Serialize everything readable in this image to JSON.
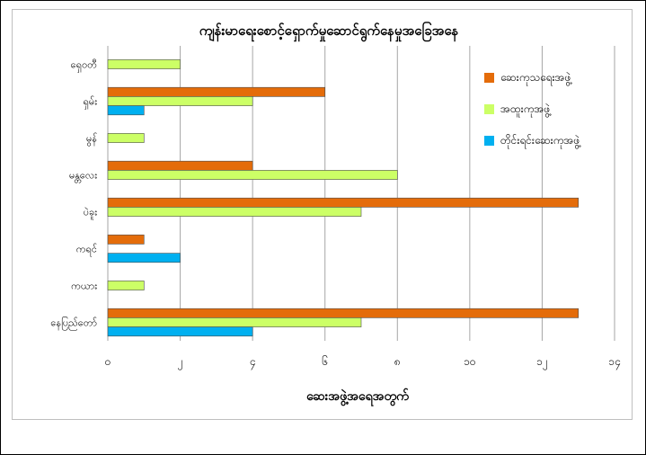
{
  "chart_data": {
    "type": "bar",
    "orientation": "horizontal",
    "title": "ကျန်းမာရေးစောင့်ရှောက်မှုဆောင်ရွက်နေမှုအခြေအနေ",
    "xlabel": "ဆေးအဖွဲ့အရေအတွက်",
    "ylabel": "",
    "xlim": [
      0,
      14
    ],
    "x_ticks": [
      0,
      2,
      4,
      6,
      8,
      10,
      12,
      14
    ],
    "x_tick_labels": [
      "၀",
      "၂",
      "၄",
      "၆",
      "၈",
      "၁၀",
      "၁၂",
      "၁၄"
    ],
    "grid": true,
    "legend_position": "top-right",
    "categories": [
      "ရှေ၀တီ",
      "ရှမ်း",
      "မွန်",
      "မန္တလေး",
      "ပဲခူး",
      "ကရင်",
      "ကယား",
      "နေပြည်တော်"
    ],
    "series": [
      {
        "name": "ဆေးကုသရေးအဖွဲ့",
        "color": "#E46C0A",
        "values": [
          0,
          6,
          0,
          4,
          13,
          1,
          0,
          13
        ]
      },
      {
        "name": "အထူးကုအဖွဲ့",
        "color": "#CCFF66",
        "values": [
          2,
          4,
          1,
          8,
          7,
          0,
          1,
          7
        ]
      },
      {
        "name": "တိုင်းရင်းဆေးကုအဖွဲ့",
        "color": "#00B0F0",
        "values": [
          0,
          1,
          0,
          0,
          0,
          2,
          0,
          4
        ]
      }
    ]
  },
  "colors": {
    "gridline": "#a6a6a6",
    "bar_outline": "#4d4d4d"
  }
}
